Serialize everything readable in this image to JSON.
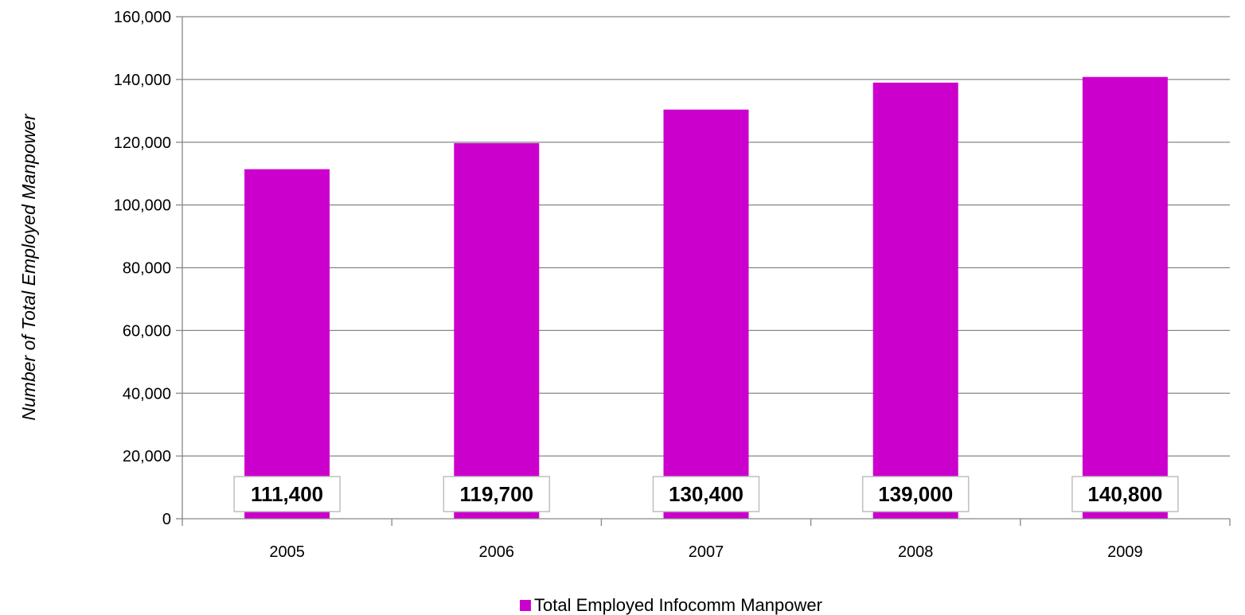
{
  "chart_data": {
    "type": "bar",
    "categories": [
      "2005",
      "2006",
      "2007",
      "2008",
      "2009"
    ],
    "series": [
      {
        "name": "Total Employed Infocomm Manpower",
        "values": [
          111400,
          119700,
          130400,
          139000,
          140800
        ],
        "color": "#CC00CC"
      }
    ],
    "data_labels": [
      "111,400",
      "119,700",
      "130,400",
      "139,000",
      "140,800"
    ],
    "y_ticks": [
      "0",
      "20,000",
      "40,000",
      "60,000",
      "80,000",
      "100,000",
      "120,000",
      "140,000",
      "160,000"
    ],
    "ylabel": "Number of Total Employed  Manpower",
    "xlabel": "",
    "ylim": [
      0,
      160000
    ],
    "grid": true,
    "legend_position": "bottom",
    "colors": {
      "bar": "#CC00CC",
      "grid": "#868686",
      "label_border": "#BFBFBF"
    }
  }
}
